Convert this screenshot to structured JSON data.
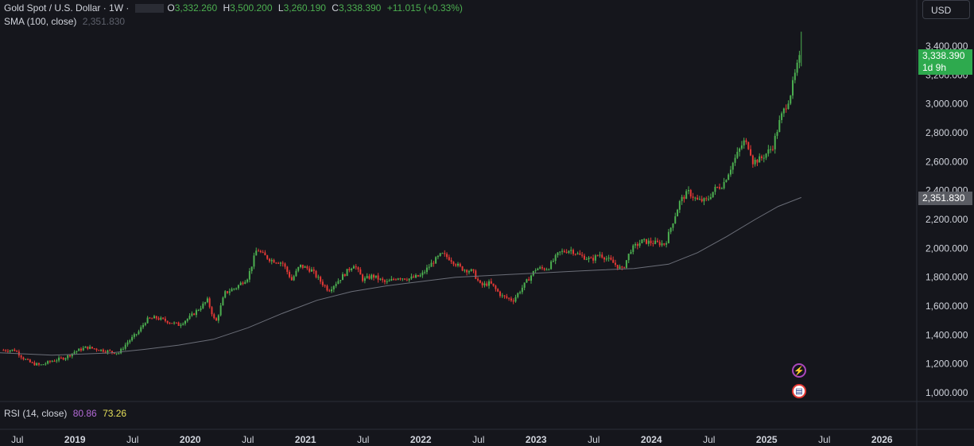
{
  "header": {
    "symbol": "Gold Spot / U.S. Dollar · 1W ·",
    "open_label": "O",
    "open": "3,332.260",
    "high_label": "H",
    "high": "3,500.200",
    "low_label": "L",
    "low": "3,260.190",
    "close_label": "C",
    "close": "3,338.390",
    "change": "+11.015 (+0.33%)",
    "currency": "USD"
  },
  "sma": {
    "label": "SMA (100, close)",
    "value": "2,351.830"
  },
  "rsi": {
    "label": "RSI (14, close)",
    "value1": "80.86",
    "value2": "73.26"
  },
  "last_price": {
    "price": "3,338.390",
    "countdown": "1d 9h"
  },
  "sma_tag": "2,351.830",
  "colors": {
    "background": "#15161c",
    "up": "#4caf50",
    "down": "#e53935",
    "sma_line": "#6b6e78",
    "axis_text": "#d1d4dc",
    "last_tag": "#2eaa4e",
    "sma_tag": "#5a5c63"
  },
  "icons": {
    "event_1": "lightning-icon",
    "event_2": "us-flag-icon"
  },
  "chart_data": {
    "type": "candlestick",
    "interval": "1W",
    "x_start": "2018-07",
    "y_range": [
      1000,
      3400
    ],
    "y_ticks": [
      "1,000.000",
      "1,200.000",
      "1,400.000",
      "1,600.000",
      "1,800.000",
      "2,000.000",
      "2,200.000",
      "2,400.000",
      "2,600.000",
      "2,800.000",
      "3,000.000",
      "3,200.000",
      "3,400.000"
    ],
    "x_ticks": [
      "Jul",
      "2019",
      "Jul",
      "2020",
      "Jul",
      "2021",
      "Jul",
      "2022",
      "Jul",
      "2023",
      "Jul",
      "2024",
      "Jul",
      "2025",
      "Jul",
      "2026"
    ],
    "close_path": [
      [
        2018.48,
        1295
      ],
      [
        2018.55,
        1240
      ],
      [
        2018.62,
        1205
      ],
      [
        2018.7,
        1190
      ],
      [
        2018.8,
        1220
      ],
      [
        2018.92,
        1245
      ],
      [
        2019.0,
        1285
      ],
      [
        2019.1,
        1315
      ],
      [
        2019.2,
        1300
      ],
      [
        2019.3,
        1285
      ],
      [
        2019.38,
        1275
      ],
      [
        2019.45,
        1345
      ],
      [
        2019.55,
        1420
      ],
      [
        2019.62,
        1505
      ],
      [
        2019.7,
        1520
      ],
      [
        2019.8,
        1495
      ],
      [
        2019.9,
        1470
      ],
      [
        2020.0,
        1525
      ],
      [
        2020.08,
        1585
      ],
      [
        2020.15,
        1640
      ],
      [
        2020.22,
        1480
      ],
      [
        2020.3,
        1690
      ],
      [
        2020.4,
        1730
      ],
      [
        2020.5,
        1800
      ],
      [
        2020.58,
        2000
      ],
      [
        2020.62,
        1960
      ],
      [
        2020.7,
        1920
      ],
      [
        2020.8,
        1900
      ],
      [
        2020.88,
        1780
      ],
      [
        2020.95,
        1880
      ],
      [
        2021.05,
        1850
      ],
      [
        2021.12,
        1780
      ],
      [
        2021.2,
        1710
      ],
      [
        2021.3,
        1790
      ],
      [
        2021.42,
        1890
      ],
      [
        2021.5,
        1780
      ],
      [
        2021.58,
        1810
      ],
      [
        2021.7,
        1760
      ],
      [
        2021.8,
        1800
      ],
      [
        2021.9,
        1790
      ],
      [
        2022.0,
        1810
      ],
      [
        2022.1,
        1900
      ],
      [
        2022.18,
        1960
      ],
      [
        2022.25,
        1930
      ],
      [
        2022.35,
        1860
      ],
      [
        2022.45,
        1840
      ],
      [
        2022.52,
        1740
      ],
      [
        2022.6,
        1760
      ],
      [
        2022.7,
        1670
      ],
      [
        2022.8,
        1640
      ],
      [
        2022.9,
        1750
      ],
      [
        2023.0,
        1860
      ],
      [
        2023.1,
        1860
      ],
      [
        2023.2,
        1970
      ],
      [
        2023.3,
        1990
      ],
      [
        2023.38,
        1950
      ],
      [
        2023.48,
        1920
      ],
      [
        2023.55,
        1960
      ],
      [
        2023.65,
        1910
      ],
      [
        2023.75,
        1850
      ],
      [
        2023.82,
        1990
      ],
      [
        2023.92,
        2050
      ],
      [
        2024.0,
        2040
      ],
      [
        2024.12,
        2030
      ],
      [
        2024.18,
        2170
      ],
      [
        2024.25,
        2330
      ],
      [
        2024.32,
        2390
      ],
      [
        2024.4,
        2330
      ],
      [
        2024.48,
        2330
      ],
      [
        2024.55,
        2410
      ],
      [
        2024.62,
        2440
      ],
      [
        2024.7,
        2580
      ],
      [
        2024.8,
        2740
      ],
      [
        2024.85,
        2700
      ],
      [
        2024.88,
        2600
      ],
      [
        2024.95,
        2620
      ],
      [
        2025.05,
        2700
      ],
      [
        2025.12,
        2900
      ],
      [
        2025.2,
        3050
      ],
      [
        2025.26,
        3250
      ],
      [
        2025.3,
        3338
      ]
    ],
    "sma_path": [
      [
        2018.0,
        1290
      ],
      [
        2018.8,
        1260
      ],
      [
        2019.3,
        1275
      ],
      [
        2019.6,
        1300
      ],
      [
        2019.9,
        1330
      ],
      [
        2020.2,
        1370
      ],
      [
        2020.5,
        1450
      ],
      [
        2020.8,
        1550
      ],
      [
        2021.1,
        1640
      ],
      [
        2021.4,
        1700
      ],
      [
        2021.7,
        1740
      ],
      [
        2022.0,
        1770
      ],
      [
        2022.3,
        1800
      ],
      [
        2022.55,
        1810
      ],
      [
        2022.8,
        1820
      ],
      [
        2023.05,
        1830
      ],
      [
        2023.3,
        1840
      ],
      [
        2023.55,
        1850
      ],
      [
        2023.85,
        1860
      ],
      [
        2024.15,
        1890
      ],
      [
        2024.4,
        1970
      ],
      [
        2024.65,
        2080
      ],
      [
        2024.9,
        2200
      ],
      [
        2025.1,
        2290
      ],
      [
        2025.3,
        2351.83
      ]
    ],
    "last_close": 3338.39,
    "sma_last": 2351.83
  }
}
